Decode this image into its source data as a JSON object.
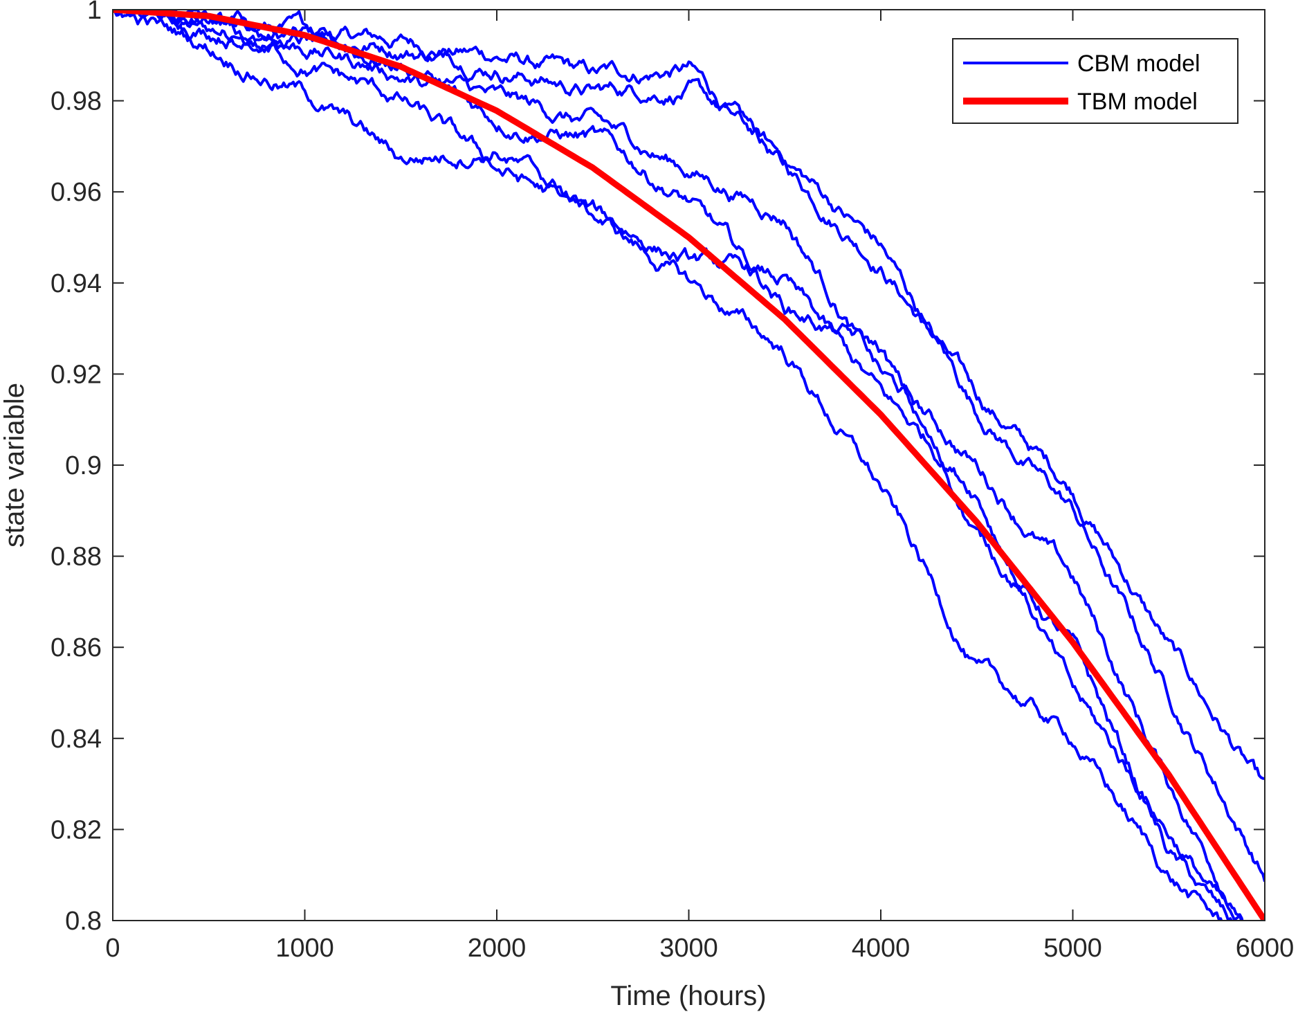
{
  "chart_data": {
    "type": "line",
    "title": "",
    "xlabel": "Time (hours)",
    "ylabel": "state variable",
    "xlim": [
      0,
      6000
    ],
    "ylim": [
      0.8,
      1.0
    ],
    "grid": false,
    "legend_location": "top-right",
    "xticks": [
      0,
      1000,
      2000,
      3000,
      4000,
      5000,
      6000
    ],
    "xtick_labels": [
      "0",
      "1000",
      "2000",
      "3000",
      "4000",
      "5000",
      "6000"
    ],
    "yticks": [
      0.8,
      0.82,
      0.84,
      0.86,
      0.88,
      0.9,
      0.92,
      0.94,
      0.96,
      0.98,
      1.0
    ],
    "ytick_labels": [
      "0.8",
      "0.82",
      "0.84",
      "0.86",
      "0.88",
      "0.9",
      "0.92",
      "0.94",
      "0.96",
      "0.98",
      "1"
    ],
    "series": [
      {
        "name": "CBM model",
        "color": "#0000ff",
        "x": [
          0,
          500,
          1000,
          1500,
          2000,
          2500,
          3000,
          3500,
          4000,
          4500,
          5000,
          5500,
          6000
        ],
        "runs": [
          [
            1.0,
            0.995,
            0.994,
            0.993,
            0.99,
            0.985,
            0.987,
            0.965,
            0.945,
            0.915,
            0.895,
            0.86,
            0.828
          ],
          [
            1.0,
            0.997,
            0.995,
            0.992,
            0.988,
            0.982,
            0.983,
            0.967,
            0.948,
            0.912,
            0.89,
            0.85,
            0.81
          ],
          [
            1.0,
            0.996,
            0.993,
            0.988,
            0.98,
            0.975,
            0.965,
            0.955,
            0.92,
            0.9,
            0.875,
            0.83,
            0.792
          ],
          [
            1.0,
            0.997,
            0.992,
            0.986,
            0.976,
            0.972,
            0.958,
            0.935,
            0.925,
            0.885,
            0.86,
            0.815,
            0.79
          ],
          [
            1.0,
            0.995,
            0.988,
            0.98,
            0.965,
            0.955,
            0.945,
            0.94,
            0.915,
            0.895,
            0.85,
            0.82,
            0.79
          ],
          [
            1.0,
            0.992,
            0.982,
            0.967,
            0.97,
            0.955,
            0.94,
            0.925,
            0.895,
            0.855,
            0.84,
            0.81,
            0.79
          ]
        ]
      },
      {
        "name": "TBM model",
        "color": "#ff0000",
        "x": [
          0,
          500,
          1000,
          1500,
          2000,
          2500,
          3000,
          3500,
          4000,
          4500,
          5000,
          5500,
          6000
        ],
        "values": [
          1.0,
          0.9986,
          0.9944,
          0.9875,
          0.9778,
          0.9653,
          0.95,
          0.932,
          0.9111,
          0.8875,
          0.8611,
          0.832,
          0.8
        ]
      }
    ]
  }
}
